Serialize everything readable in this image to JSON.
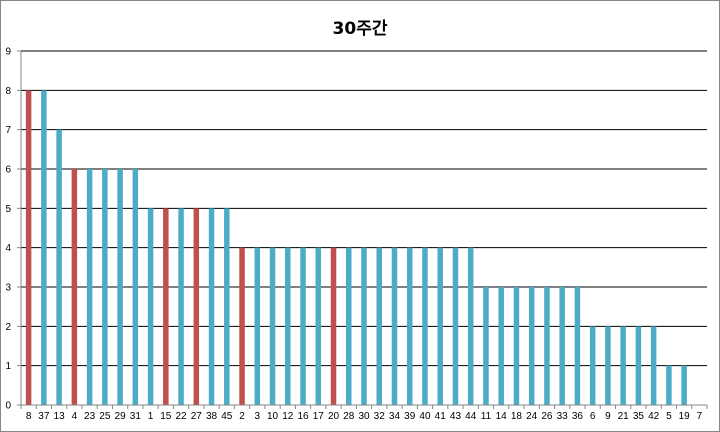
{
  "chart_data": {
    "type": "bar",
    "title": "30주간",
    "xlabel": "",
    "ylabel": "",
    "ylim": [
      0,
      9
    ],
    "yticks": [
      0,
      1,
      2,
      3,
      4,
      5,
      6,
      7,
      8,
      9
    ],
    "grid": true,
    "legend": "none",
    "colors": {
      "default": "#4bacc6",
      "highlight": "#c0504d",
      "grid": "#000000"
    },
    "categories": [
      "8",
      "37",
      "13",
      "4",
      "23",
      "25",
      "29",
      "31",
      "1",
      "15",
      "22",
      "27",
      "38",
      "45",
      "2",
      "3",
      "10",
      "12",
      "16",
      "17",
      "20",
      "28",
      "30",
      "32",
      "34",
      "39",
      "40",
      "41",
      "43",
      "44",
      "11",
      "14",
      "18",
      "24",
      "26",
      "33",
      "36",
      "6",
      "9",
      "21",
      "35",
      "42",
      "5",
      "19",
      "7"
    ],
    "values": [
      8,
      8,
      7,
      6,
      6,
      6,
      6,
      6,
      5,
      5,
      5,
      5,
      5,
      5,
      4,
      4,
      4,
      4,
      4,
      4,
      4,
      4,
      4,
      4,
      4,
      4,
      4,
      4,
      4,
      4,
      3,
      3,
      3,
      3,
      3,
      3,
      3,
      2,
      2,
      2,
      2,
      2,
      1,
      1,
      0
    ],
    "highlighted": [
      "8",
      "4",
      "15",
      "27",
      "2",
      "20"
    ]
  }
}
